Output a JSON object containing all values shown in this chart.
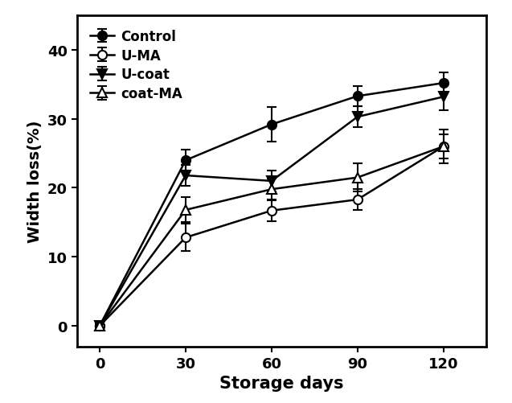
{
  "x": [
    0,
    30,
    60,
    90,
    120
  ],
  "series": {
    "Control": {
      "y": [
        0,
        24.0,
        29.2,
        33.3,
        35.2
      ],
      "yerr": [
        0.3,
        1.5,
        2.5,
        1.5,
        1.5
      ],
      "marker": "o",
      "fillstyle": "full",
      "markersize": 8
    },
    "U-MA": {
      "y": [
        0,
        12.8,
        16.7,
        18.3,
        26.0
      ],
      "yerr": [
        0.3,
        2.0,
        1.5,
        1.5,
        2.5
      ],
      "marker": "o",
      "fillstyle": "none",
      "markersize": 8
    },
    "U-coat": {
      "y": [
        0,
        21.8,
        21.0,
        30.3,
        33.2
      ],
      "yerr": [
        0.3,
        1.5,
        1.5,
        1.5,
        2.0
      ],
      "marker": "v",
      "fillstyle": "full",
      "markersize": 8
    },
    "coat-MA": {
      "y": [
        0,
        16.8,
        19.8,
        21.5,
        26.0
      ],
      "yerr": [
        0.3,
        1.8,
        1.5,
        2.0,
        1.8
      ],
      "marker": "^",
      "fillstyle": "none",
      "markersize": 8
    }
  },
  "xlabel": "Storage days",
  "ylabel": "Width loss(%)",
  "xlim": [
    -8,
    135
  ],
  "ylim": [
    -3,
    45
  ],
  "xticks": [
    0,
    30,
    60,
    90,
    120
  ],
  "yticks": [
    0,
    10,
    20,
    30,
    40
  ],
  "legend_order": [
    "Control",
    "U-MA",
    "U-coat",
    "coat-MA"
  ],
  "xlabel_fontsize": 15,
  "ylabel_fontsize": 14,
  "tick_fontsize": 13,
  "legend_fontsize": 12,
  "spine_linewidth": 2.0,
  "line_linewidth": 1.8,
  "elinewidth": 1.5,
  "capsize": 4,
  "capthick": 1.5
}
